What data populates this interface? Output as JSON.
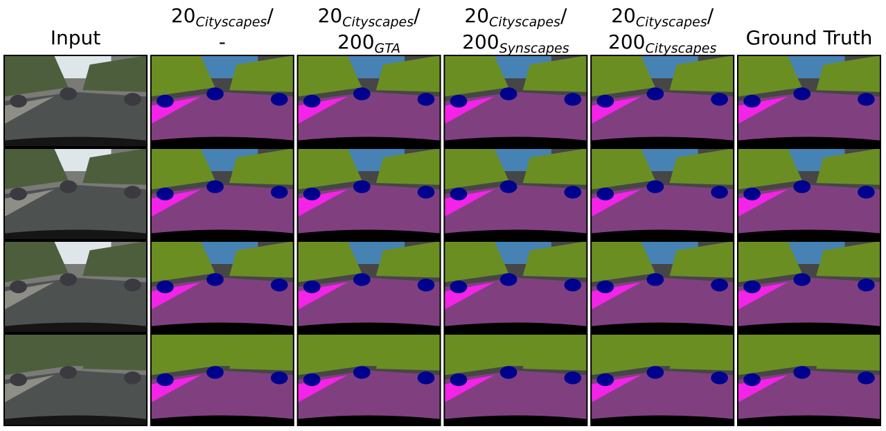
{
  "columns": [
    {
      "title": "Input"
    },
    {
      "line1": {
        "text": "20",
        "sub": "Cityscapes",
        "tail": "/"
      },
      "line2": {
        "text": "-"
      }
    },
    {
      "line1": {
        "text": "20",
        "sub": "Cityscapes",
        "tail": "/"
      },
      "line2": {
        "text": "200",
        "sub": "GTA"
      }
    },
    {
      "line1": {
        "text": "20",
        "sub": "Cityscapes",
        "tail": "/"
      },
      "line2": {
        "text": "200",
        "sub": "Synscapes"
      }
    },
    {
      "line1": {
        "text": "20",
        "sub": "Cityscapes",
        "tail": "/"
      },
      "line2": {
        "text": "200",
        "sub": "Cityscapes"
      }
    },
    {
      "title": "Ground Truth"
    }
  ]
}
